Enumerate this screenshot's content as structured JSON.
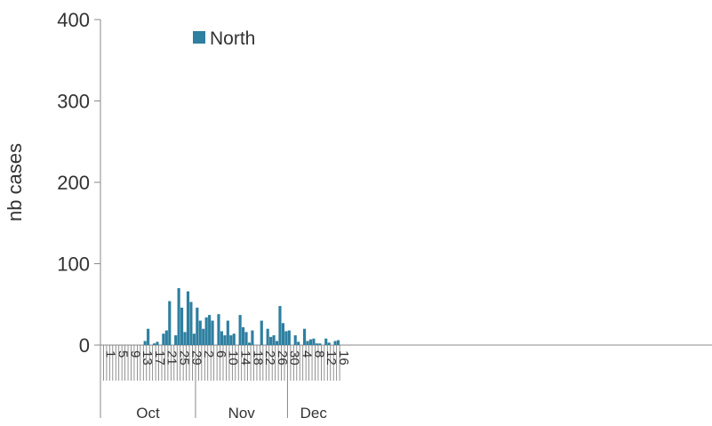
{
  "chart_data": {
    "type": "bar",
    "ylabel": "nb cases",
    "ylim": [
      0,
      400
    ],
    "yticks": [
      0,
      100,
      200,
      300,
      400
    ],
    "legend": {
      "placement": "top-left",
      "entries": [
        "North"
      ]
    },
    "series_color": "#2e7fa0",
    "start_day": {
      "month": "Oct",
      "day": 1
    },
    "xtick_labels": [
      "1",
      "5",
      "9",
      "13",
      "17",
      "21",
      "25",
      "29",
      "2",
      "6",
      "10",
      "14",
      "18",
      "22",
      "26",
      "30",
      "4",
      "8",
      "12",
      "16"
    ],
    "months": [
      "Oct",
      "Nov",
      "Dec"
    ],
    "series": [
      {
        "name": "North",
        "values": [
          0,
          0,
          0,
          0,
          0,
          0,
          0,
          0,
          0,
          0,
          0,
          0,
          0,
          0,
          5,
          20,
          0,
          2,
          4,
          0,
          14,
          18,
          54,
          0,
          12,
          70,
          46,
          16,
          66,
          53,
          14,
          46,
          30,
          20,
          34,
          37,
          30,
          0,
          38,
          17,
          12,
          30,
          12,
          14,
          0,
          37,
          22,
          16,
          3,
          18,
          0,
          0,
          30,
          0,
          20,
          10,
          12,
          5,
          48,
          27,
          17,
          18,
          0,
          12,
          4,
          0,
          20,
          5,
          7,
          8,
          2,
          2,
          0,
          8,
          3,
          0,
          5,
          6
        ]
      }
    ]
  }
}
